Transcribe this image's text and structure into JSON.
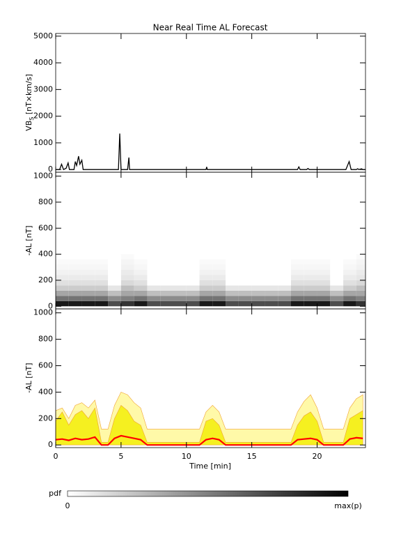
{
  "chart_data": [
    {
      "type": "line",
      "title": "Near Real Time AL Forecast",
      "ylabel": [
        "VB",
        "S",
        " [nT×km/s]"
      ],
      "xlim": [
        0,
        23.7
      ],
      "ylim": [
        -100,
        5100
      ],
      "yticks": [
        0,
        1000,
        2000,
        3000,
        4000,
        5000
      ],
      "color": "#000000",
      "x": [
        0,
        0.3,
        0.45,
        0.6,
        0.8,
        0.95,
        1.05,
        1.4,
        1.5,
        1.6,
        1.75,
        1.85,
        2,
        2.1,
        4.8,
        4.9,
        5.0,
        5.5,
        5.6,
        5.65,
        11.5,
        11.55,
        11.6,
        18.5,
        18.6,
        18.7,
        19.2,
        19.3,
        19.4,
        22.2,
        22.45,
        22.6,
        23,
        23.1,
        23.2,
        23.4,
        23.5,
        23.7
      ],
      "values": [
        0,
        0,
        200,
        0,
        50,
        250,
        0,
        0,
        300,
        150,
        500,
        200,
        350,
        0,
        0,
        1350,
        0,
        0,
        450,
        0,
        0,
        100,
        0,
        0,
        100,
        0,
        0,
        40,
        0,
        0,
        300,
        0,
        0,
        30,
        0,
        30,
        0,
        0
      ]
    },
    {
      "type": "heatmap",
      "ylabel": "-AL [nT]",
      "xlim": [
        0,
        23.7
      ],
      "ylim": [
        -20,
        1030
      ],
      "yticks": [
        0,
        200,
        400,
        600,
        800,
        1000
      ],
      "xbins": [
        0,
        1,
        2,
        3,
        4,
        5,
        6,
        7,
        8,
        9,
        10,
        11,
        12,
        13,
        14,
        15,
        16,
        17,
        18,
        19,
        20,
        21,
        22,
        23,
        23.7
      ],
      "ybins": [
        0,
        40,
        80,
        120,
        160,
        200,
        240,
        280,
        320,
        360,
        400
      ],
      "z": [
        [
          0.9,
          0.9,
          0.9,
          0.9,
          0.7,
          0.8,
          0.9,
          0.7,
          0.7,
          0.7,
          0.7,
          0.9,
          0.9,
          0.7,
          0.7,
          0.7,
          0.7,
          0.7,
          0.9,
          0.9,
          0.9,
          0.7,
          0.9,
          0.8
        ],
        [
          0.55,
          0.55,
          0.55,
          0.55,
          0.45,
          0.5,
          0.55,
          0.45,
          0.45,
          0.45,
          0.45,
          0.55,
          0.55,
          0.45,
          0.45,
          0.45,
          0.45,
          0.45,
          0.55,
          0.55,
          0.55,
          0.45,
          0.55,
          0.5
        ],
        [
          0.35,
          0.35,
          0.35,
          0.35,
          0.25,
          0.35,
          0.35,
          0.25,
          0.25,
          0.25,
          0.25,
          0.35,
          0.35,
          0.25,
          0.25,
          0.25,
          0.25,
          0.25,
          0.35,
          0.35,
          0.35,
          0.25,
          0.35,
          0.35
        ],
        [
          0.2,
          0.2,
          0.2,
          0.2,
          0.1,
          0.25,
          0.2,
          0.1,
          0.1,
          0.1,
          0.1,
          0.2,
          0.2,
          0.1,
          0.1,
          0.1,
          0.1,
          0.1,
          0.2,
          0.2,
          0.2,
          0.1,
          0.2,
          0.25
        ],
        [
          0.12,
          0.12,
          0.12,
          0.12,
          0,
          0.15,
          0.12,
          0,
          0,
          0,
          0,
          0.12,
          0.12,
          0,
          0,
          0,
          0,
          0,
          0.12,
          0.12,
          0.12,
          0,
          0.12,
          0.15
        ],
        [
          0.08,
          0.08,
          0.08,
          0.08,
          0,
          0.1,
          0.08,
          0,
          0,
          0,
          0,
          0.08,
          0.08,
          0,
          0,
          0,
          0,
          0,
          0.08,
          0.08,
          0.08,
          0,
          0.08,
          0.1
        ],
        [
          0.05,
          0.05,
          0.05,
          0.05,
          0,
          0.08,
          0.05,
          0,
          0,
          0,
          0,
          0.05,
          0.05,
          0,
          0,
          0,
          0,
          0,
          0.05,
          0.05,
          0.05,
          0,
          0.05,
          0.08
        ],
        [
          0.03,
          0.03,
          0.03,
          0.03,
          0,
          0.05,
          0.03,
          0,
          0,
          0,
          0,
          0.03,
          0.03,
          0,
          0,
          0,
          0,
          0,
          0.03,
          0.03,
          0.03,
          0,
          0.03,
          0.05
        ],
        [
          0.02,
          0.02,
          0.02,
          0.02,
          0,
          0.04,
          0.02,
          0,
          0,
          0,
          0,
          0.02,
          0.02,
          0,
          0,
          0,
          0,
          0,
          0.02,
          0.02,
          0.02,
          0,
          0.02,
          0.04
        ],
        [
          0,
          0,
          0,
          0,
          0,
          0.02,
          0,
          0,
          0,
          0,
          0,
          0,
          0,
          0,
          0,
          0,
          0,
          0,
          0,
          0,
          0,
          0,
          0,
          0.02
        ]
      ]
    },
    {
      "type": "area",
      "ylabel": "-AL [nT]",
      "xlabel": "Time [min]",
      "xlim": [
        0,
        23.7
      ],
      "ylim": [
        -20,
        1030
      ],
      "yticks": [
        0,
        200,
        400,
        600,
        800,
        1000
      ],
      "xticks": [
        0,
        5,
        10,
        15,
        20
      ],
      "x": [
        0,
        0.5,
        1,
        1.5,
        2,
        2.5,
        3,
        3.5,
        4,
        4.5,
        5,
        5.5,
        6,
        6.5,
        7,
        7.5,
        8,
        8.5,
        9,
        9.5,
        10,
        10.5,
        11,
        11.5,
        12,
        12.5,
        13,
        13.5,
        14,
        14.5,
        15,
        15.5,
        16,
        16.5,
        17,
        17.5,
        18,
        18.5,
        19,
        19.5,
        20,
        20.5,
        21,
        21.5,
        22,
        22.5,
        23,
        23.5
      ],
      "series": [
        {
          "color": "#fff9a8",
          "stroke": "#f0a030",
          "values": [
            260,
            280,
            200,
            300,
            320,
            280,
            340,
            120,
            120,
            300,
            400,
            380,
            320,
            280,
            120,
            120,
            120,
            120,
            120,
            120,
            120,
            120,
            120,
            250,
            300,
            250,
            120,
            120,
            120,
            120,
            120,
            120,
            120,
            120,
            120,
            120,
            120,
            250,
            330,
            380,
            280,
            120,
            120,
            120,
            120,
            280,
            350,
            380
          ]
        },
        {
          "color": "#f5f020",
          "stroke": "#f0a030",
          "values": [
            180,
            250,
            150,
            230,
            260,
            200,
            280,
            20,
            20,
            200,
            300,
            260,
            180,
            150,
            20,
            20,
            20,
            20,
            20,
            20,
            20,
            20,
            20,
            180,
            200,
            150,
            20,
            20,
            20,
            20,
            20,
            20,
            20,
            20,
            20,
            20,
            20,
            150,
            220,
            250,
            180,
            20,
            20,
            20,
            20,
            200,
            230,
            260
          ]
        },
        {
          "color": "#ff0000",
          "values": [
            40,
            45,
            35,
            50,
            40,
            45,
            60,
            0,
            0,
            50,
            70,
            60,
            50,
            40,
            0,
            0,
            0,
            0,
            0,
            0,
            0,
            0,
            0,
            40,
            50,
            40,
            0,
            0,
            0,
            0,
            0,
            0,
            0,
            0,
            0,
            0,
            0,
            40,
            45,
            50,
            40,
            0,
            0,
            0,
            0,
            45,
            55,
            50
          ]
        }
      ]
    }
  ],
  "colorbar": {
    "label": "pdf",
    "min_label": "0",
    "max_label": "max(p)"
  }
}
